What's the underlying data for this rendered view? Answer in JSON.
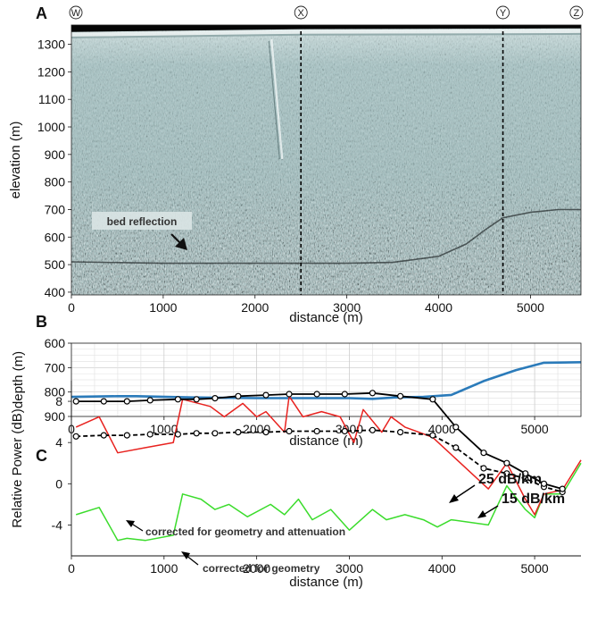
{
  "chart_data": [
    {
      "type": "radargram",
      "panel_label": "A",
      "xlabel": "distance (m)",
      "ylabel": "elevation (m)",
      "xlim": [
        0,
        5550
      ],
      "ylim": [
        390,
        1370
      ],
      "xticks": [
        0,
        1000,
        2000,
        3000,
        4000,
        5000
      ],
      "yticks": [
        400,
        500,
        600,
        700,
        800,
        900,
        1000,
        1100,
        1200,
        1300
      ],
      "markers": [
        {
          "label": "W",
          "x": 0,
          "dashed": false
        },
        {
          "label": "X",
          "x": 2500,
          "dashed": true
        },
        {
          "label": "Y",
          "x": 4700,
          "dashed": true
        },
        {
          "label": "Z",
          "x": 5500,
          "dashed": false
        }
      ],
      "surface": {
        "x": [
          0,
          2500,
          4700,
          5550
        ],
        "y": [
          1345,
          1355,
          1357,
          1358
        ]
      },
      "bed": {
        "x": [
          0,
          1000,
          2000,
          3000,
          3500,
          4000,
          4300,
          4500,
          4700,
          5000,
          5300,
          5550
        ],
        "y": [
          510,
          505,
          505,
          505,
          508,
          530,
          575,
          625,
          670,
          690,
          700,
          700
        ]
      },
      "annotation": "bed reflection"
    },
    {
      "type": "line",
      "panel_label": "B",
      "xlabel": "distance (m)",
      "ylabel": "depth (m)",
      "xlim": [
        0,
        5500
      ],
      "ylim": [
        600,
        900
      ],
      "yinverted": true,
      "grid": true,
      "xticks": [
        0,
        1000,
        2000,
        3000,
        4000,
        5000
      ],
      "yticks": [
        600,
        700,
        800,
        900
      ],
      "series": [
        {
          "color": "#2b7bba",
          "x": [
            0,
            500,
            700,
            1300,
            2000,
            2500,
            3000,
            3250,
            3500,
            3800,
            4100,
            4450,
            4800,
            5100,
            5500
          ],
          "y": [
            820,
            817,
            817,
            822,
            825,
            825,
            825,
            828,
            822,
            820,
            812,
            755,
            710,
            680,
            678
          ]
        }
      ]
    },
    {
      "type": "line",
      "panel_label": "C",
      "xlabel": "distance (m)",
      "ylabel": "Relative Power (dB)",
      "xlim": [
        0,
        5500
      ],
      "ylim": [
        -7,
        10
      ],
      "grid": false,
      "xticks": [
        0,
        1000,
        2000,
        3000,
        4000,
        5000
      ],
      "yticks": [
        -4,
        0,
        4,
        8
      ],
      "series": [
        {
          "name": "25 dB/km",
          "color": "#000000",
          "dashed": false,
          "markers": true,
          "x": [
            50,
            350,
            600,
            850,
            1150,
            1350,
            1550,
            1800,
            2100,
            2350,
            2650,
            2950,
            3250,
            3550,
            3900,
            4150,
            4450,
            4700,
            4900,
            5100,
            5300
          ],
          "y": [
            8.0,
            8.0,
            8.0,
            8.1,
            8.2,
            8.2,
            8.3,
            8.5,
            8.6,
            8.7,
            8.7,
            8.7,
            8.8,
            8.5,
            8.2,
            5.5,
            3.0,
            2.0,
            1.0,
            0.0,
            -0.5
          ]
        },
        {
          "name": "15 dB/km",
          "color": "#000000",
          "dashed": true,
          "markers": true,
          "x": [
            50,
            350,
            600,
            850,
            1150,
            1350,
            1550,
            1800,
            2100,
            2350,
            2650,
            2950,
            3250,
            3550,
            3900,
            4150,
            4450,
            4700,
            4900,
            5100,
            5300
          ],
          "y": [
            4.6,
            4.7,
            4.7,
            4.8,
            4.8,
            4.9,
            4.9,
            5.0,
            5.0,
            5.1,
            5.1,
            5.1,
            5.2,
            5.0,
            4.7,
            3.5,
            1.5,
            1.0,
            0.5,
            -0.3,
            -0.8
          ]
        },
        {
          "name": "",
          "color": "#e8221f",
          "dashed": false,
          "markers": false,
          "x": [
            50,
            300,
            500,
            800,
            1100,
            1200,
            1500,
            1650,
            1850,
            2000,
            2100,
            2300,
            2350,
            2500,
            2700,
            2900,
            3050,
            3150,
            3350,
            3450,
            3600,
            3750,
            3900,
            4200,
            4500,
            4700,
            4900,
            5000,
            5100,
            5300,
            5500
          ],
          "y": [
            5.5,
            6.5,
            3.0,
            3.5,
            4.0,
            8.2,
            7.5,
            6.5,
            7.8,
            6.5,
            7.0,
            5.0,
            8.5,
            6.5,
            7.0,
            6.5,
            4.0,
            7.2,
            5.0,
            6.5,
            5.5,
            5.0,
            4.5,
            2.0,
            -0.5,
            2.0,
            -1.5,
            -3.0,
            -1.0,
            -0.6,
            2.3
          ]
        },
        {
          "name": "",
          "color": "#3bdc2c",
          "dashed": false,
          "markers": false,
          "x": [
            50,
            300,
            500,
            600,
            800,
            1100,
            1200,
            1400,
            1550,
            1700,
            1900,
            2150,
            2300,
            2450,
            2600,
            2800,
            3000,
            3250,
            3400,
            3600,
            3800,
            3950,
            4100,
            4500,
            4700,
            4900,
            5000,
            5100,
            5300,
            5500
          ],
          "y": [
            -3.0,
            -2.3,
            -5.5,
            -5.3,
            -5.5,
            -5.0,
            -1.0,
            -1.5,
            -2.5,
            -2.0,
            -3.2,
            -2.0,
            -3.0,
            -1.5,
            -3.5,
            -2.5,
            -4.5,
            -2.5,
            -3.5,
            -3.0,
            -3.5,
            -4.2,
            -3.5,
            -4.0,
            -0.2,
            -2.5,
            -3.3,
            -1.0,
            -1.0,
            2.0
          ]
        }
      ],
      "labels": {
        "series_25": "25 dB/km",
        "series_15": "15 dB/km",
        "corrected_attenuation": "corrected for geometry and attenuation",
        "corrected_geometry": "corrected for geometry"
      }
    }
  ]
}
